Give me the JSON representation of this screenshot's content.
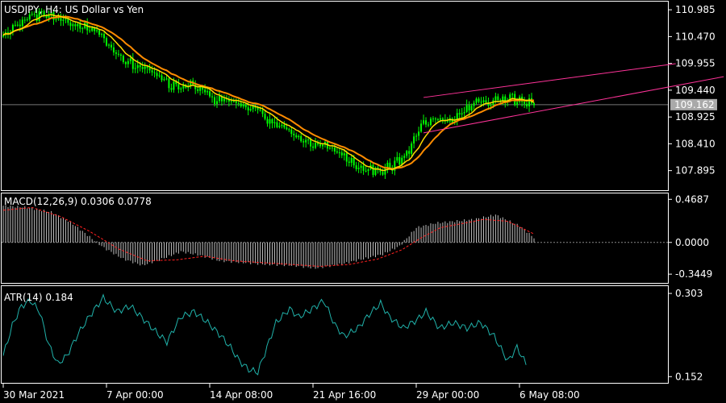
{
  "window": {
    "symbol_title": "USDJPY, H4:  US Dollar vs Yen"
  },
  "colors": {
    "background": "#000000",
    "frame": "#ffffff",
    "bull_candle": "#00ff00",
    "ma_fast": "#ffd700",
    "ma_slow": "#ff8c00",
    "channel": "#ff3399",
    "macd_hist": "#c0c0c0",
    "macd_signal": "#ff2020",
    "atr_line": "#20b2aa",
    "price_line": "#777777",
    "price_badge_bg": "#a9a9a9",
    "price_badge_text": "#000000"
  },
  "chart_data": [
    {
      "type": "candlestick",
      "title": "USDJPY, H4:  US Dollar vs Yen",
      "y_ticks": [
        "110.985",
        "110.470",
        "109.955",
        "109.440",
        "108.925",
        "108.410",
        "107.895"
      ],
      "ylim": [
        107.58,
        111.08
      ],
      "current_price": "109.162",
      "x_tick_labels": [
        "30 Mar 2021",
        "7 Apr 00:00",
        "14 Apr 08:00",
        "21 Apr 16:00",
        "29 Apr 00:00",
        "6 May 08:00"
      ],
      "bar_count": 222,
      "anchors": [
        [
          0,
          110.5
        ],
        [
          8,
          110.8
        ],
        [
          16,
          110.9
        ],
        [
          24,
          110.8
        ],
        [
          30,
          110.7
        ],
        [
          40,
          110.55
        ],
        [
          48,
          110.1
        ],
        [
          55,
          109.9
        ],
        [
          62,
          109.8
        ],
        [
          70,
          109.5
        ],
        [
          80,
          109.55
        ],
        [
          88,
          109.25
        ],
        [
          95,
          109.25
        ],
        [
          100,
          109.1
        ],
        [
          106,
          109.1
        ],
        [
          112,
          108.8
        ],
        [
          120,
          108.65
        ],
        [
          128,
          108.4
        ],
        [
          136,
          108.35
        ],
        [
          142,
          108.15
        ],
        [
          150,
          107.95
        ],
        [
          156,
          107.9
        ],
        [
          161,
          107.95
        ],
        [
          168,
          108.2
        ],
        [
          174,
          108.75
        ],
        [
          180,
          108.95
        ],
        [
          186,
          108.8
        ],
        [
          192,
          109.05
        ],
        [
          198,
          109.2
        ],
        [
          204,
          109.25
        ],
        [
          210,
          109.3
        ],
        [
          216,
          109.2
        ],
        [
          222,
          109.16
        ]
      ],
      "moving_averages": [
        {
          "color_key": "ma_fast",
          "period": 9
        },
        {
          "color_key": "ma_slow",
          "period": 17
        }
      ],
      "channel_lines": [
        {
          "from": [
            175,
            109.3
          ],
          "to": [
            280,
            109.95
          ]
        },
        {
          "from": [
            175,
            108.62
          ],
          "to": [
            300,
            109.7
          ]
        }
      ]
    },
    {
      "type": "bar",
      "label": "MACD(12,26,9) 0.0306 0.0778",
      "y_ticks": [
        "0.4687",
        "0.0000",
        "-0.3449"
      ],
      "ylim": [
        -0.37,
        0.48
      ],
      "anchors": [
        [
          0,
          0.4
        ],
        [
          10,
          0.38
        ],
        [
          20,
          0.33
        ],
        [
          28,
          0.22
        ],
        [
          35,
          0.08
        ],
        [
          42,
          -0.06
        ],
        [
          50,
          -0.18
        ],
        [
          58,
          -0.25
        ],
        [
          66,
          -0.18
        ],
        [
          74,
          -0.1
        ],
        [
          82,
          -0.14
        ],
        [
          90,
          -0.2
        ],
        [
          100,
          -0.22
        ],
        [
          110,
          -0.24
        ],
        [
          120,
          -0.25
        ],
        [
          130,
          -0.28
        ],
        [
          140,
          -0.24
        ],
        [
          150,
          -0.18
        ],
        [
          158,
          -0.13
        ],
        [
          165,
          -0.04
        ],
        [
          172,
          0.16
        ],
        [
          180,
          0.21
        ],
        [
          188,
          0.23
        ],
        [
          196,
          0.25
        ],
        [
          205,
          0.3
        ],
        [
          215,
          0.18
        ],
        [
          222,
          0.03
        ]
      ],
      "signal_anchors": [
        [
          0,
          0.35
        ],
        [
          12,
          0.38
        ],
        [
          24,
          0.28
        ],
        [
          36,
          0.12
        ],
        [
          48,
          -0.07
        ],
        [
          60,
          -0.2
        ],
        [
          72,
          -0.19
        ],
        [
          84,
          -0.15
        ],
        [
          96,
          -0.2
        ],
        [
          108,
          -0.22
        ],
        [
          120,
          -0.24
        ],
        [
          132,
          -0.26
        ],
        [
          144,
          -0.24
        ],
        [
          156,
          -0.18
        ],
        [
          166,
          -0.08
        ],
        [
          174,
          0.05
        ],
        [
          182,
          0.16
        ],
        [
          192,
          0.21
        ],
        [
          200,
          0.25
        ],
        [
          210,
          0.23
        ],
        [
          222,
          0.08
        ]
      ]
    },
    {
      "type": "line",
      "label": "ATR(14) 0.184",
      "y_ticks": [
        "0.303",
        "0.152"
      ],
      "ylim": [
        0.148,
        0.306
      ],
      "anchors": [
        [
          0,
          0.19
        ],
        [
          4,
          0.245
        ],
        [
          8,
          0.28
        ],
        [
          12,
          0.29
        ],
        [
          16,
          0.27
        ],
        [
          20,
          0.21
        ],
        [
          24,
          0.175
        ],
        [
          28,
          0.19
        ],
        [
          33,
          0.23
        ],
        [
          38,
          0.262
        ],
        [
          44,
          0.295
        ],
        [
          50,
          0.27
        ],
        [
          56,
          0.28
        ],
        [
          62,
          0.255
        ],
        [
          68,
          0.23
        ],
        [
          72,
          0.215
        ],
        [
          78,
          0.26
        ],
        [
          84,
          0.27
        ],
        [
          90,
          0.25
        ],
        [
          96,
          0.225
        ],
        [
          100,
          0.205
        ],
        [
          104,
          0.18
        ],
        [
          108,
          0.165
        ],
        [
          112,
          0.16
        ],
        [
          116,
          0.205
        ],
        [
          120,
          0.25
        ],
        [
          126,
          0.275
        ],
        [
          130,
          0.26
        ],
        [
          136,
          0.275
        ],
        [
          141,
          0.29
        ],
        [
          146,
          0.245
        ],
        [
          150,
          0.225
        ],
        [
          156,
          0.24
        ],
        [
          161,
          0.265
        ],
        [
          166,
          0.285
        ],
        [
          170,
          0.26
        ],
        [
          176,
          0.24
        ],
        [
          182,
          0.255
        ],
        [
          186,
          0.27
        ],
        [
          192,
          0.24
        ],
        [
          198,
          0.25
        ],
        [
          204,
          0.24
        ],
        [
          210,
          0.25
        ],
        [
          216,
          0.225
        ],
        [
          222,
          0.18
        ],
        [
          226,
          0.205
        ],
        [
          230,
          0.175
        ]
      ]
    }
  ]
}
